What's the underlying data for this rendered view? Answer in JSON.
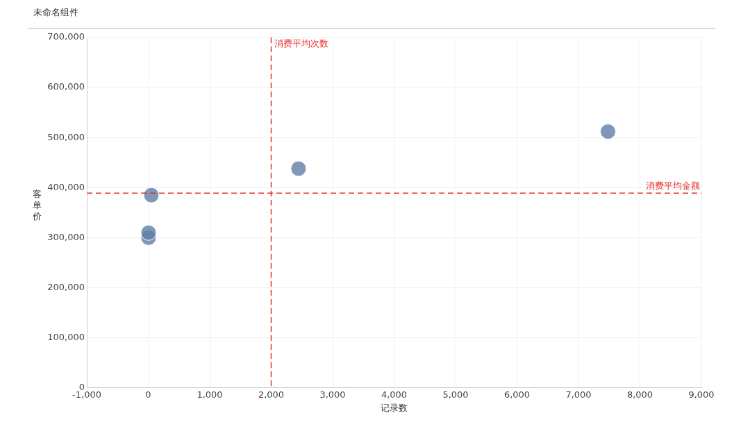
{
  "chart_data": {
    "type": "scatter",
    "title": "未命名组件",
    "xlabel": "记录数",
    "ylabel": "客单价",
    "x": [
      7480,
      2445,
      50,
      5,
      5
    ],
    "values": [
      512000,
      438000,
      385000,
      310000,
      300000
    ],
    "color": "#5f7ea6",
    "xlim": [
      -1000,
      9000
    ],
    "xticks": [
      {
        "value": -1000,
        "label": "-1,000"
      },
      {
        "value": 0,
        "label": "0"
      },
      {
        "value": 1000,
        "label": "1,000"
      },
      {
        "value": 2000,
        "label": "2,000"
      },
      {
        "value": 3000,
        "label": "3,000"
      },
      {
        "value": 4000,
        "label": "4,000"
      },
      {
        "value": 5000,
        "label": "5,000"
      },
      {
        "value": 6000,
        "label": "6,000"
      },
      {
        "value": 7000,
        "label": "7,000"
      },
      {
        "value": 8000,
        "label": "8,000"
      },
      {
        "value": 9000,
        "label": "9,000"
      }
    ],
    "ylim": [
      0,
      700000
    ],
    "yticks": [
      {
        "value": 0,
        "label": "0"
      },
      {
        "value": 100000,
        "label": "100,000"
      },
      {
        "value": 200000,
        "label": "200,000"
      },
      {
        "value": 300000,
        "label": "300,000"
      },
      {
        "value": 400000,
        "label": "400,000"
      },
      {
        "value": 500000,
        "label": "500,000"
      },
      {
        "value": 600000,
        "label": "600,000"
      },
      {
        "value": 700000,
        "label": "700,000"
      }
    ],
    "ref_lines": [
      {
        "axis": "x",
        "value": 2000,
        "label": "消费平均次数",
        "color": "#e8302a",
        "line_style": "dashed"
      },
      {
        "axis": "y",
        "value": 389000,
        "label": "消费平均金额",
        "color": "#e8302a",
        "line_style": "dashed"
      }
    ],
    "grid": true,
    "marker": "circle",
    "legend": false
  }
}
